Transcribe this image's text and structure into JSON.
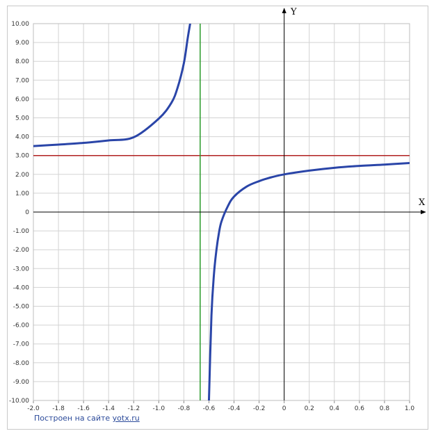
{
  "chart_data": {
    "type": "line",
    "xlabel": "X",
    "ylabel": "Y",
    "xlim": [
      -2.0,
      1.0
    ],
    "ylim": [
      -10.0,
      10.0
    ],
    "x_ticks": [
      -2.0,
      -1.8,
      -1.6,
      -1.4,
      -1.2,
      -1.0,
      -0.8,
      -0.6,
      -0.4,
      -0.2,
      0,
      0.2,
      0.4,
      0.6,
      0.8,
      1.0
    ],
    "x_tick_labels": [
      "-2.0",
      "-1.8",
      "-1.6",
      "-1.4",
      "-1.2",
      "-1.0",
      "-0.8",
      "-0.6",
      "-0.4",
      "-0.2",
      "0",
      "0.2",
      "0.4",
      "0.6",
      "0.8",
      "1.0"
    ],
    "y_ticks": [
      -10,
      -9,
      -8,
      -7,
      -6,
      -5,
      -4,
      -3,
      -2,
      -1,
      0,
      1,
      2,
      3,
      4,
      5,
      6,
      7,
      8,
      9,
      10
    ],
    "y_tick_labels": [
      "-10.00",
      "-9.00",
      "-8.00",
      "-7.00",
      "-6.00",
      "-5.00",
      "-4.00",
      "-3.00",
      "-2.00",
      "-1.00",
      "0",
      "1.00",
      "2.00",
      "3.00",
      "4.00",
      "5.00",
      "6.00",
      "7.00",
      "8.00",
      "9.00",
      "10.00"
    ],
    "grid": true,
    "series": [
      {
        "color": "#2a45a8",
        "x": [
          -2.0,
          -1.8,
          -1.6,
          -1.4,
          -1.2,
          -1.0,
          -0.9,
          -0.85,
          -0.8,
          -0.77,
          -0.75,
          null,
          -0.6,
          -0.58,
          -0.56,
          -0.54,
          -0.52,
          -0.5,
          -0.45,
          -0.4,
          -0.3,
          -0.2,
          -0.1,
          0,
          0.2,
          0.4,
          0.6,
          0.8,
          1.0
        ],
        "y": [
          3.5,
          3.58,
          3.67,
          3.8,
          3.97,
          4.96,
          5.79,
          6.6,
          7.9,
          9.2,
          10.0,
          null,
          -10.0,
          -5.5,
          -3.3,
          -2.0,
          -1.1,
          -0.5,
          0.3,
          0.82,
          1.35,
          1.64,
          1.85,
          2.0,
          2.2,
          2.35,
          2.45,
          2.52,
          2.6
        ]
      }
    ],
    "reference_lines": [
      {
        "orientation": "horizontal",
        "value": 3,
        "color": "#b02020"
      },
      {
        "orientation": "vertical",
        "value": -0.67,
        "color": "#2a9a2a"
      }
    ]
  },
  "credit": {
    "text": "Построен на сайте",
    "link": "yotx.ru"
  }
}
